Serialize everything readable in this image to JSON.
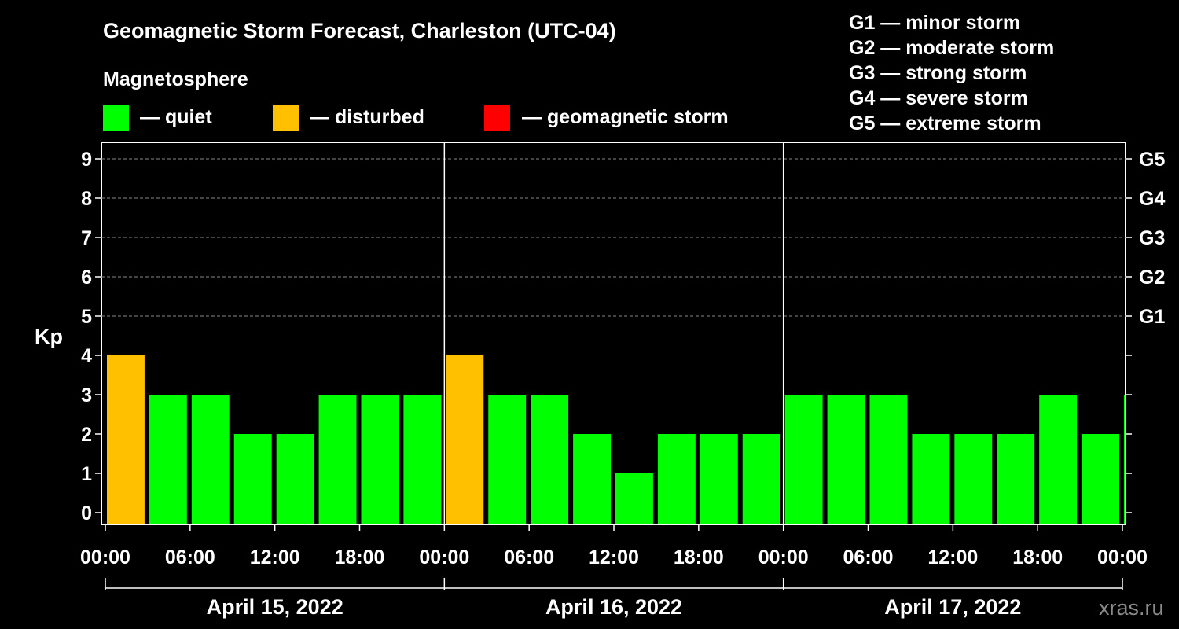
{
  "title": "Geomagnetic Storm Forecast, Charleston (UTC-04)",
  "magnetosphere_label": "Magnetosphere",
  "legend": [
    {
      "label": "— quiet",
      "color": "#00ff00"
    },
    {
      "label": "— disturbed",
      "color": "#ffc000"
    },
    {
      "label": "— geomagnetic storm",
      "color": "#ff0000"
    }
  ],
  "storm_levels": [
    "G1 — minor storm",
    "G2 — moderate storm",
    "G3 — strong storm",
    "G4 — severe storm",
    "G5 — extreme storm"
  ],
  "watermark": "xras.ru",
  "chart_data": {
    "type": "bar",
    "ylabel": "Kp",
    "ylim": [
      0,
      9
    ],
    "yticks": [
      0,
      1,
      2,
      3,
      4,
      5,
      6,
      7,
      8,
      9
    ],
    "right_ticks": [
      {
        "value": 5,
        "label": "G1"
      },
      {
        "value": 6,
        "label": "G2"
      },
      {
        "value": 7,
        "label": "G3"
      },
      {
        "value": 8,
        "label": "G4"
      },
      {
        "value": 9,
        "label": "G5"
      }
    ],
    "xtick_labels": [
      "00:00",
      "06:00",
      "12:00",
      "18:00",
      "00:00",
      "06:00",
      "12:00",
      "18:00",
      "00:00",
      "06:00",
      "12:00",
      "18:00",
      "00:00"
    ],
    "days": [
      "April 15, 2022",
      "April 16, 2022",
      "April 17, 2022"
    ],
    "bar_start_hours": [
      0,
      3,
      6,
      9,
      12,
      15,
      18,
      21,
      24,
      27,
      30,
      33,
      36,
      39,
      42,
      45,
      48,
      51,
      54,
      57,
      60,
      63,
      66,
      69,
      72
    ],
    "values": [
      4,
      3,
      3,
      2,
      2,
      3,
      3,
      3,
      4,
      3,
      3,
      2,
      1,
      2,
      2,
      2,
      3,
      3,
      3,
      2,
      2,
      2,
      3,
      2,
      3
    ],
    "status_colors": {
      "quiet": "#00ff00",
      "disturbed": "#ffc000",
      "storm": "#ff0000"
    },
    "grid": true
  }
}
